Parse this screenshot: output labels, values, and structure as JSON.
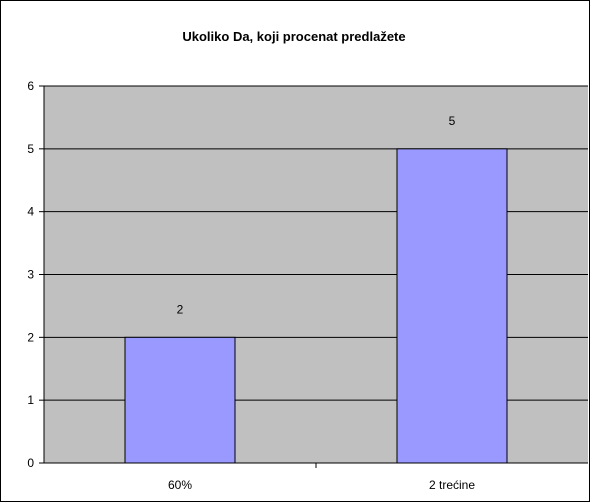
{
  "chart_data": {
    "type": "bar",
    "title": "Ukoliko Da, koji procenat predlažete",
    "categories": [
      "60%",
      "2 trećine"
    ],
    "values": [
      2,
      5
    ],
    "data_labels": [
      "2",
      "5"
    ],
    "ylim": [
      0,
      6
    ],
    "yticks": [
      0,
      1,
      2,
      3,
      4,
      5,
      6
    ],
    "ytick_labels": [
      "0",
      "1",
      "2",
      "3",
      "4",
      "5",
      "6"
    ],
    "grid": true,
    "legend": "none",
    "colors": {
      "plot_background": "#c0c0c0",
      "bar_fill": "#9999ff",
      "bar_stroke": "#000000",
      "gridline": "#000000"
    }
  }
}
